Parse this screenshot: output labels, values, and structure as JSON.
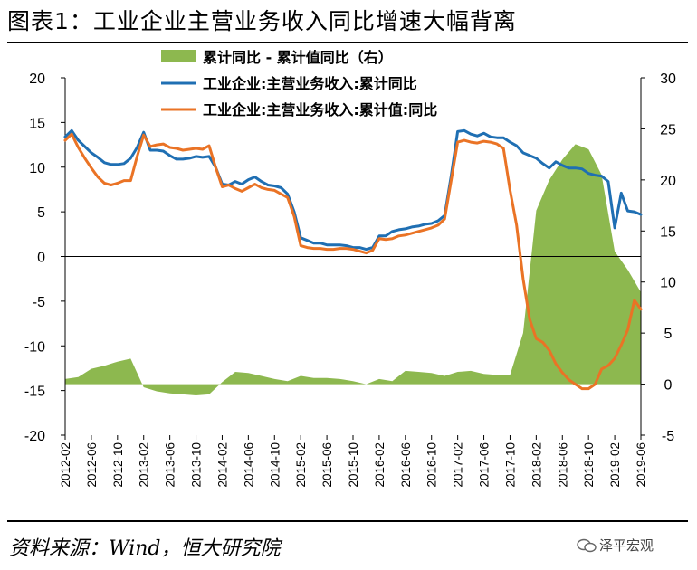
{
  "title": "图表1：工业企业主营业务收入同比增速大幅背离",
  "source": "资料来源：Wind，恒大研究院",
  "watermark": "泽平宏观",
  "watermark_icon": "wechat-icon",
  "colors": {
    "area": "#8db84f",
    "blue": "#1f6fb3",
    "orange": "#ea7325"
  },
  "chart_data": {
    "type": "line",
    "x_start": "2012-02",
    "x_end": "2019-06",
    "x_tick_labels": [
      "2012-02",
      "2012-06",
      "2012-10",
      "2013-02",
      "2013-06",
      "2013-10",
      "2014-02",
      "2014-06",
      "2014-10",
      "2015-02",
      "2015-06",
      "2015-10",
      "2016-02",
      "2016-06",
      "2016-10",
      "2017-02",
      "2017-06",
      "2017-10",
      "2018-02",
      "2018-06",
      "2018-10",
      "2019-02",
      "2019-06"
    ],
    "y_left": {
      "lim": [
        -20,
        20
      ],
      "ticks": [
        20,
        15,
        10,
        5,
        0,
        -5,
        -10,
        -15,
        -20
      ]
    },
    "y_right": {
      "lim": [
        -5,
        30
      ],
      "ticks": [
        30,
        25,
        20,
        15,
        10,
        5,
        0,
        -5
      ]
    },
    "series": [
      {
        "name": "累计同比 - 累计值同比（右）",
        "type": "area",
        "axis": "right",
        "points": [
          [
            "2012-02",
            0.5
          ],
          [
            "2012-04",
            0.7
          ],
          [
            "2012-06",
            1.5
          ],
          [
            "2012-08",
            1.8
          ],
          [
            "2012-10",
            2.2
          ],
          [
            "2012-12",
            2.5
          ],
          [
            "2013-02",
            -0.3
          ],
          [
            "2013-04",
            -0.7
          ],
          [
            "2013-06",
            -0.9
          ],
          [
            "2013-08",
            -1.0
          ],
          [
            "2013-10",
            -1.1
          ],
          [
            "2013-12",
            -1.0
          ],
          [
            "2014-02",
            0.2
          ],
          [
            "2014-04",
            1.2
          ],
          [
            "2014-06",
            1.1
          ],
          [
            "2014-08",
            0.8
          ],
          [
            "2014-10",
            0.5
          ],
          [
            "2014-12",
            0.3
          ],
          [
            "2015-02",
            0.8
          ],
          [
            "2015-04",
            0.6
          ],
          [
            "2015-06",
            0.6
          ],
          [
            "2015-08",
            0.5
          ],
          [
            "2015-10",
            0.3
          ],
          [
            "2015-12",
            0.0
          ],
          [
            "2016-02",
            0.5
          ],
          [
            "2016-04",
            0.3
          ],
          [
            "2016-06",
            1.3
          ],
          [
            "2016-08",
            1.2
          ],
          [
            "2016-10",
            1.1
          ],
          [
            "2016-12",
            0.8
          ],
          [
            "2017-02",
            1.2
          ],
          [
            "2017-04",
            1.3
          ],
          [
            "2017-06",
            1.0
          ],
          [
            "2017-08",
            0.9
          ],
          [
            "2017-10",
            0.9
          ],
          [
            "2017-12",
            5.0
          ],
          [
            "2018-02",
            17.0
          ],
          [
            "2018-04",
            20.0
          ],
          [
            "2018-06",
            22.0
          ],
          [
            "2018-08",
            23.5
          ],
          [
            "2018-10",
            23.0
          ],
          [
            "2018-12",
            20.5
          ],
          [
            "2019-02",
            13.0
          ],
          [
            "2019-04",
            11.2
          ],
          [
            "2019-06",
            9.0
          ]
        ]
      },
      {
        "name": "工业企业:主营业务收入:累计同比",
        "type": "line",
        "axis": "left",
        "color": "blue",
        "points": [
          [
            "2012-02",
            13.4
          ],
          [
            "2012-03",
            14.1
          ],
          [
            "2012-04",
            13.0
          ],
          [
            "2012-05",
            12.3
          ],
          [
            "2012-06",
            11.6
          ],
          [
            "2012-07",
            11.1
          ],
          [
            "2012-08",
            10.5
          ],
          [
            "2012-09",
            10.3
          ],
          [
            "2012-10",
            10.3
          ],
          [
            "2012-11",
            10.4
          ],
          [
            "2012-12",
            11.0
          ],
          [
            "2013-01",
            12.2
          ],
          [
            "2013-02",
            13.9
          ],
          [
            "2013-03",
            11.9
          ],
          [
            "2013-04",
            11.9
          ],
          [
            "2013-05",
            11.8
          ],
          [
            "2013-06",
            11.3
          ],
          [
            "2013-07",
            10.9
          ],
          [
            "2013-08",
            10.9
          ],
          [
            "2013-09",
            11.0
          ],
          [
            "2013-10",
            11.2
          ],
          [
            "2013-11",
            11.1
          ],
          [
            "2013-12",
            11.2
          ],
          [
            "2014-01",
            10.0
          ],
          [
            "2014-02",
            8.1
          ],
          [
            "2014-03",
            8.0
          ],
          [
            "2014-04",
            8.4
          ],
          [
            "2014-05",
            8.1
          ],
          [
            "2014-06",
            8.6
          ],
          [
            "2014-07",
            8.9
          ],
          [
            "2014-08",
            8.4
          ],
          [
            "2014-09",
            8.0
          ],
          [
            "2014-10",
            7.9
          ],
          [
            "2014-11",
            7.7
          ],
          [
            "2014-12",
            7.0
          ],
          [
            "2015-01",
            5.0
          ],
          [
            "2015-02",
            2.1
          ],
          [
            "2015-03",
            1.8
          ],
          [
            "2015-04",
            1.5
          ],
          [
            "2015-05",
            1.5
          ],
          [
            "2015-06",
            1.3
          ],
          [
            "2015-07",
            1.3
          ],
          [
            "2015-08",
            1.3
          ],
          [
            "2015-09",
            1.2
          ],
          [
            "2015-10",
            1.0
          ],
          [
            "2015-11",
            1.0
          ],
          [
            "2015-12",
            0.8
          ],
          [
            "2016-01",
            1.0
          ],
          [
            "2016-02",
            2.3
          ],
          [
            "2016-03",
            2.3
          ],
          [
            "2016-04",
            2.8
          ],
          [
            "2016-05",
            3.0
          ],
          [
            "2016-06",
            3.1
          ],
          [
            "2016-07",
            3.3
          ],
          [
            "2016-08",
            3.4
          ],
          [
            "2016-09",
            3.6
          ],
          [
            "2016-10",
            3.7
          ],
          [
            "2016-11",
            4.0
          ],
          [
            "2016-12",
            4.6
          ],
          [
            "2017-01",
            9.0
          ],
          [
            "2017-02",
            14.0
          ],
          [
            "2017-03",
            14.1
          ],
          [
            "2017-04",
            13.7
          ],
          [
            "2017-05",
            13.5
          ],
          [
            "2017-06",
            13.8
          ],
          [
            "2017-07",
            13.4
          ],
          [
            "2017-08",
            13.3
          ],
          [
            "2017-09",
            13.3
          ],
          [
            "2017-10",
            12.8
          ],
          [
            "2017-11",
            12.4
          ],
          [
            "2017-12",
            11.6
          ],
          [
            "2018-01",
            11.3
          ],
          [
            "2018-02",
            11.0
          ],
          [
            "2018-03",
            10.4
          ],
          [
            "2018-04",
            9.9
          ],
          [
            "2018-05",
            10.6
          ],
          [
            "2018-06",
            10.2
          ],
          [
            "2018-07",
            9.9
          ],
          [
            "2018-08",
            9.9
          ],
          [
            "2018-09",
            9.8
          ],
          [
            "2018-10",
            9.3
          ],
          [
            "2018-11",
            9.1
          ],
          [
            "2018-12",
            9.0
          ],
          [
            "2019-01",
            8.4
          ],
          [
            "2019-02",
            3.2
          ],
          [
            "2019-03",
            7.1
          ],
          [
            "2019-04",
            5.1
          ],
          [
            "2019-05",
            5.0
          ],
          [
            "2019-06",
            4.7
          ]
        ]
      },
      {
        "name": "工业企业:主营业务收入:累计值:同比",
        "type": "line",
        "axis": "left",
        "color": "orange",
        "points": [
          [
            "2012-02",
            13.0
          ],
          [
            "2012-03",
            13.7
          ],
          [
            "2012-04",
            12.2
          ],
          [
            "2012-05",
            11.0
          ],
          [
            "2012-06",
            9.9
          ],
          [
            "2012-07",
            8.9
          ],
          [
            "2012-08",
            8.2
          ],
          [
            "2012-09",
            8.0
          ],
          [
            "2012-10",
            8.2
          ],
          [
            "2012-11",
            8.5
          ],
          [
            "2012-12",
            8.5
          ],
          [
            "2013-01",
            11.2
          ],
          [
            "2013-02",
            13.6
          ],
          [
            "2013-03",
            12.3
          ],
          [
            "2013-04",
            12.5
          ],
          [
            "2013-05",
            12.6
          ],
          [
            "2013-06",
            12.2
          ],
          [
            "2013-07",
            12.1
          ],
          [
            "2013-08",
            11.9
          ],
          [
            "2013-09",
            12.0
          ],
          [
            "2013-10",
            12.1
          ],
          [
            "2013-11",
            12.0
          ],
          [
            "2013-12",
            12.4
          ],
          [
            "2014-01",
            10.0
          ],
          [
            "2014-02",
            7.8
          ],
          [
            "2014-03",
            8.0
          ],
          [
            "2014-04",
            7.6
          ],
          [
            "2014-05",
            7.3
          ],
          [
            "2014-06",
            7.7
          ],
          [
            "2014-07",
            8.1
          ],
          [
            "2014-08",
            7.7
          ],
          [
            "2014-09",
            7.5
          ],
          [
            "2014-10",
            7.4
          ],
          [
            "2014-11",
            7.0
          ],
          [
            "2014-12",
            6.6
          ],
          [
            "2015-01",
            4.5
          ],
          [
            "2015-02",
            1.2
          ],
          [
            "2015-03",
            1.0
          ],
          [
            "2015-04",
            0.9
          ],
          [
            "2015-05",
            0.9
          ],
          [
            "2015-06",
            0.8
          ],
          [
            "2015-07",
            0.8
          ],
          [
            "2015-08",
            0.9
          ],
          [
            "2015-09",
            0.9
          ],
          [
            "2015-10",
            0.8
          ],
          [
            "2015-11",
            0.6
          ],
          [
            "2015-12",
            0.4
          ],
          [
            "2016-01",
            0.7
          ],
          [
            "2016-02",
            2.0
          ],
          [
            "2016-03",
            1.9
          ],
          [
            "2016-04",
            2.0
          ],
          [
            "2016-05",
            2.3
          ],
          [
            "2016-06",
            2.4
          ],
          [
            "2016-07",
            2.6
          ],
          [
            "2016-08",
            2.8
          ],
          [
            "2016-09",
            3.0
          ],
          [
            "2016-10",
            3.2
          ],
          [
            "2016-11",
            3.5
          ],
          [
            "2016-12",
            4.2
          ],
          [
            "2017-01",
            8.5
          ],
          [
            "2017-02",
            12.8
          ],
          [
            "2017-03",
            13.0
          ],
          [
            "2017-04",
            12.8
          ],
          [
            "2017-05",
            12.7
          ],
          [
            "2017-06",
            12.9
          ],
          [
            "2017-07",
            12.8
          ],
          [
            "2017-08",
            12.6
          ],
          [
            "2017-09",
            12.1
          ],
          [
            "2017-10",
            7.4
          ],
          [
            "2017-11",
            3.5
          ],
          [
            "2017-12",
            -2.5
          ],
          [
            "2018-01",
            -7.0
          ],
          [
            "2018-02",
            -9.2
          ],
          [
            "2018-03",
            -9.6
          ],
          [
            "2018-04",
            -10.5
          ],
          [
            "2018-05",
            -12.0
          ],
          [
            "2018-06",
            -13.0
          ],
          [
            "2018-07",
            -13.8
          ],
          [
            "2018-08",
            -14.3
          ],
          [
            "2018-09",
            -14.8
          ],
          [
            "2018-10",
            -14.8
          ],
          [
            "2018-11",
            -14.3
          ],
          [
            "2018-12",
            -12.6
          ],
          [
            "2019-01",
            -12.2
          ],
          [
            "2019-02",
            -11.4
          ],
          [
            "2019-03",
            -9.9
          ],
          [
            "2019-04",
            -8.2
          ],
          [
            "2019-05",
            -4.9
          ],
          [
            "2019-06",
            -5.9
          ]
        ]
      }
    ],
    "legend_placement": "top",
    "grid": false
  }
}
